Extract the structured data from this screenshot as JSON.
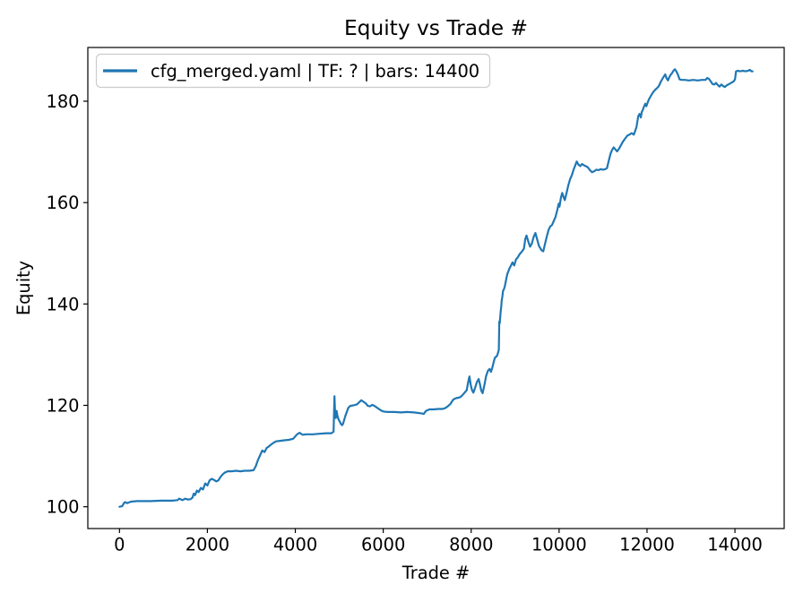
{
  "figure": {
    "background": "#ffffff",
    "title": "Equity vs Trade #"
  },
  "chart_data": {
    "type": "line",
    "title": "Equity vs Trade #",
    "xlabel": "Trade #",
    "ylabel": "Equity",
    "legend": {
      "position": "upper-left",
      "entries": [
        {
          "label": "cfg_merged.yaml | TF: ? | bars: 14400",
          "color": "#1f77b4"
        }
      ]
    },
    "line_color": "#1f77b4",
    "xlim": [
      -720,
      15120
    ],
    "ylim": [
      95.7,
      190.6
    ],
    "xticks": [
      0,
      2000,
      4000,
      6000,
      8000,
      10000,
      12000,
      14000
    ],
    "yticks": [
      100,
      120,
      140,
      160,
      180
    ],
    "grid": false,
    "series": [
      {
        "name": "cfg_merged.yaml | TF: ? | bars: 14400",
        "x": [
          0,
          60,
          110,
          140,
          170,
          260,
          400,
          700,
          950,
          1200,
          1320,
          1360,
          1430,
          1500,
          1560,
          1620,
          1660,
          1690,
          1720,
          1760,
          1800,
          1850,
          1900,
          1950,
          2000,
          2050,
          2100,
          2150,
          2200,
          2250,
          2300,
          2360,
          2410,
          2460,
          2550,
          2650,
          2750,
          2850,
          2950,
          3050,
          3100,
          3150,
          3200,
          3250,
          3300,
          3350,
          3400,
          3450,
          3500,
          3560,
          3650,
          3750,
          3850,
          3950,
          4040,
          4100,
          4160,
          4250,
          4400,
          4550,
          4700,
          4820,
          4870,
          4890,
          4905,
          4920,
          4940,
          4960,
          4985,
          5010,
          5040,
          5065,
          5085,
          5110,
          5140,
          5175,
          5205,
          5250,
          5320,
          5400,
          5450,
          5500,
          5550,
          5600,
          5650,
          5700,
          5750,
          5800,
          5850,
          5900,
          5950,
          6000,
          6100,
          6250,
          6400,
          6550,
          6700,
          6800,
          6880,
          6920,
          6970,
          7050,
          7150,
          7250,
          7350,
          7420,
          7480,
          7530,
          7565,
          7600,
          7650,
          7700,
          7750,
          7800,
          7850,
          7900,
          7930,
          7960,
          7990,
          8020,
          8050,
          8090,
          8130,
          8170,
          8200,
          8230,
          8260,
          8300,
          8340,
          8380,
          8420,
          8450,
          8480,
          8510,
          8540,
          8570,
          8595,
          8615,
          8630,
          8640,
          8650,
          8660,
          8672,
          8685,
          8695,
          8710,
          8725,
          8745,
          8765,
          8785,
          8805,
          8825,
          8845,
          8865,
          8900,
          8940,
          8980,
          9020,
          9060,
          9100,
          9150,
          9200,
          9230,
          9260,
          9300,
          9340,
          9380,
          9420,
          9460,
          9500,
          9540,
          9600,
          9640,
          9680,
          9720,
          9760,
          9800,
          9840,
          9880,
          9920,
          9960,
          9990,
          10010,
          10040,
          10070,
          10100,
          10130,
          10170,
          10210,
          10250,
          10290,
          10330,
          10370,
          10400,
          10440,
          10480,
          10520,
          10560,
          10600,
          10650,
          10700,
          10750,
          10800,
          10850,
          10900,
          10950,
          11000,
          11050,
          11090,
          11130,
          11170,
          11200,
          11240,
          11280,
          11320,
          11360,
          11400,
          11450,
          11500,
          11550,
          11600,
          11650,
          11700,
          11725,
          11760,
          11800,
          11830,
          11860,
          11880,
          11905,
          11930,
          11960,
          11985,
          12010,
          12040,
          12070,
          12110,
          12150,
          12190,
          12230,
          12270,
          12310,
          12350,
          12385,
          12415,
          12445,
          12475,
          12505,
          12535,
          12565,
          12600,
          12635,
          12665,
          12700,
          12740,
          12790,
          12860,
          12950,
          13050,
          13150,
          13250,
          13330,
          13370,
          13410,
          13450,
          13490,
          13530,
          13570,
          13610,
          13650,
          13690,
          13730,
          13770,
          13810,
          13850,
          13890,
          13930,
          13970,
          14000,
          14025,
          14060,
          14120,
          14180,
          14240,
          14300,
          14340,
          14375,
          14400
        ],
        "y": [
          100,
          100.1,
          100.8,
          100.9,
          100.7,
          101.0,
          101.1,
          101.1,
          101.2,
          101.2,
          101.3,
          101.6,
          101.3,
          101.6,
          101.4,
          101.5,
          101.8,
          102.6,
          102.3,
          103.2,
          102.9,
          103.7,
          103.4,
          104.6,
          104.2,
          105.2,
          105.5,
          105.3,
          105.0,
          105.2,
          105.9,
          106.5,
          106.8,
          107.0,
          107.0,
          107.1,
          107.0,
          107.1,
          107.1,
          107.2,
          108.0,
          109.2,
          110.2,
          111.1,
          110.8,
          111.6,
          111.9,
          112.3,
          112.6,
          112.9,
          113.0,
          113.1,
          113.2,
          113.4,
          114.3,
          114.6,
          114.2,
          114.3,
          114.3,
          114.4,
          114.5,
          114.5,
          114.8,
          121.8,
          118.5,
          117.5,
          118.9,
          117.9,
          117.2,
          116.8,
          116.3,
          116.1,
          116.4,
          117.1,
          118.0,
          118.8,
          119.5,
          119.9,
          120.0,
          120.2,
          120.6,
          121.0,
          120.7,
          120.4,
          119.9,
          119.8,
          120.1,
          119.9,
          119.6,
          119.3,
          119.0,
          118.8,
          118.7,
          118.7,
          118.6,
          118.7,
          118.6,
          118.5,
          118.4,
          118.3,
          118.9,
          119.2,
          119.2,
          119.3,
          119.3,
          119.5,
          119.9,
          120.3,
          120.8,
          121.2,
          121.4,
          121.5,
          121.6,
          122.0,
          122.5,
          123.0,
          124.5,
          125.7,
          124.0,
          123.0,
          122.5,
          123.5,
          124.6,
          125.2,
          124.1,
          122.9,
          122.4,
          124.0,
          125.8,
          126.8,
          127.2,
          126.6,
          127.4,
          128.5,
          129.4,
          129.6,
          129.9,
          130.5,
          131.0,
          136.5,
          136.2,
          137.3,
          138.6,
          139.5,
          140.7,
          141.5,
          142.6,
          142.9,
          143.5,
          144.3,
          145.2,
          146.0,
          146.4,
          146.9,
          147.5,
          148.2,
          147.6,
          148.8,
          149.2,
          149.8,
          150.3,
          150.9,
          152.8,
          153.5,
          152.3,
          151.3,
          151.9,
          153.2,
          154.0,
          152.8,
          151.5,
          150.6,
          150.4,
          151.9,
          153.3,
          154.6,
          155.3,
          155.6,
          156.4,
          157.2,
          158.6,
          159.8,
          159.2,
          160.9,
          161.9,
          161.1,
          160.5,
          161.9,
          163.4,
          164.6,
          165.4,
          166.5,
          167.4,
          168.1,
          167.5,
          167.2,
          167.6,
          167.4,
          167.2,
          167.0,
          166.4,
          166.0,
          166.2,
          166.5,
          166.4,
          166.6,
          166.5,
          166.6,
          166.8,
          168.3,
          169.6,
          170.3,
          170.9,
          170.5,
          170.1,
          170.6,
          171.2,
          172.0,
          172.6,
          173.2,
          173.4,
          173.7,
          173.4,
          174.0,
          174.9,
          177.0,
          177.5,
          176.8,
          177.9,
          178.3,
          178.9,
          179.5,
          179.0,
          179.6,
          180.3,
          180.8,
          181.4,
          181.9,
          182.3,
          182.6,
          183.0,
          183.8,
          184.4,
          184.9,
          185.3,
          184.5,
          184.1,
          184.7,
          185.2,
          185.5,
          186.0,
          186.3,
          185.9,
          185.3,
          184.3,
          184.2,
          184.2,
          184.1,
          184.2,
          184.1,
          184.2,
          184.2,
          184.6,
          184.4,
          183.9,
          183.4,
          183.3,
          183.6,
          183.2,
          182.9,
          183.3,
          183.0,
          182.8,
          183.1,
          183.3,
          183.5,
          183.7,
          183.9,
          184.3,
          185.9,
          186.0,
          185.9,
          186.0,
          185.9,
          186.0,
          186.2,
          185.9,
          185.9
        ]
      }
    ]
  }
}
